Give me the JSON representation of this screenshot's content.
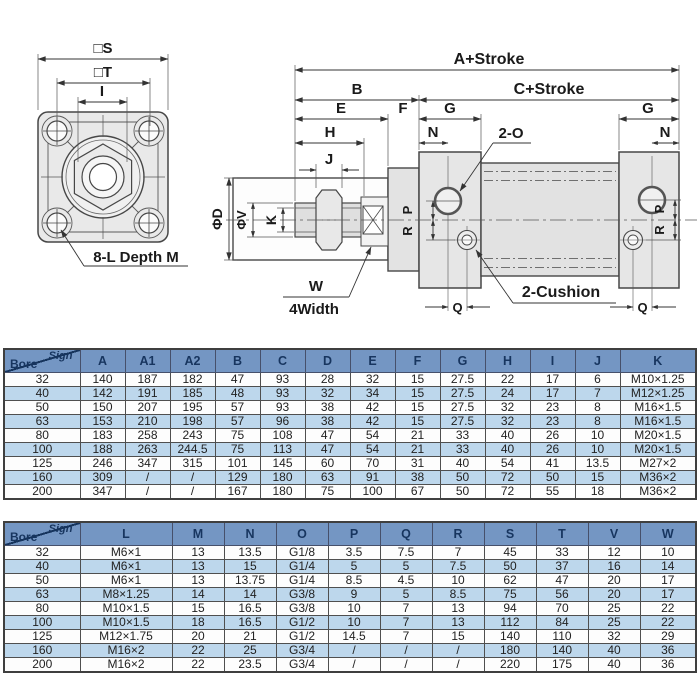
{
  "drawing": {
    "flange_view": {
      "dim_s": "□S",
      "dim_t": "□T",
      "dim_i": "I",
      "screw_note": "8-L Depth M"
    },
    "side_view": {
      "dim_a": "A+Stroke",
      "dim_b": "B",
      "dim_c": "C+Stroke",
      "dim_e": "E",
      "dim_f": "F",
      "dim_g_left": "G",
      "dim_g_right": "G",
      "dim_h": "H",
      "dim_n_left": "N",
      "dim_n_right": "N",
      "dim_j": "J",
      "dim_phi_d": "ΦD",
      "dim_phi_v": "ΦV",
      "dim_k": "K",
      "dim_p_left": "P",
      "dim_r_left": "R",
      "dim_p_right": "P",
      "dim_r_right": "R",
      "dim_q_left": "Q",
      "dim_q_right": "Q",
      "port_note": "2-O",
      "cushion_note": "2-Cushion",
      "dim_w": "W",
      "width_note": "4Width"
    }
  },
  "colors": {
    "table_header_bg": "#7496c3",
    "table_header_text": "#17355f",
    "table_row_alt": "#bdd7ec",
    "table_row": "#fdfdfd",
    "table_border": "#4f4f4f",
    "drawing_line": "#474747",
    "drawing_fill": "#e6e6e6"
  },
  "tables": [
    {
      "corner": {
        "sign": "Sign",
        "bore": "Bore"
      },
      "columns": [
        "A",
        "A1",
        "A2",
        "B",
        "C",
        "D",
        "E",
        "F",
        "G",
        "H",
        "I",
        "J",
        "K"
      ],
      "rows": [
        {
          "bore": "32",
          "cells": [
            "140",
            "187",
            "182",
            "47",
            "93",
            "28",
            "32",
            "15",
            "27.5",
            "22",
            "17",
            "6",
            "M10×1.25"
          ]
        },
        {
          "bore": "40",
          "cells": [
            "142",
            "191",
            "185",
            "48",
            "93",
            "32",
            "34",
            "15",
            "27.5",
            "24",
            "17",
            "7",
            "M12×1.25"
          ]
        },
        {
          "bore": "50",
          "cells": [
            "150",
            "207",
            "195",
            "57",
            "93",
            "38",
            "42",
            "15",
            "27.5",
            "32",
            "23",
            "8",
            "M16×1.5"
          ]
        },
        {
          "bore": "63",
          "cells": [
            "153",
            "210",
            "198",
            "57",
            "96",
            "38",
            "42",
            "15",
            "27.5",
            "32",
            "23",
            "8",
            "M16×1.5"
          ]
        },
        {
          "bore": "80",
          "cells": [
            "183",
            "258",
            "243",
            "75",
            "108",
            "47",
            "54",
            "21",
            "33",
            "40",
            "26",
            "10",
            "M20×1.5"
          ]
        },
        {
          "bore": "100",
          "cells": [
            "188",
            "263",
            "244.5",
            "75",
            "113",
            "47",
            "54",
            "21",
            "33",
            "40",
            "26",
            "10",
            "M20×1.5"
          ]
        },
        {
          "bore": "125",
          "cells": [
            "246",
            "347",
            "315",
            "101",
            "145",
            "60",
            "70",
            "31",
            "40",
            "54",
            "41",
            "13.5",
            "M27×2"
          ]
        },
        {
          "bore": "160",
          "cells": [
            "309",
            "/",
            "/",
            "129",
            "180",
            "63",
            "91",
            "38",
            "50",
            "72",
            "50",
            "15",
            "M36×2"
          ]
        },
        {
          "bore": "200",
          "cells": [
            "347",
            "/",
            "/",
            "167",
            "180",
            "75",
            "100",
            "67",
            "50",
            "72",
            "55",
            "18",
            "M36×2"
          ]
        }
      ]
    },
    {
      "corner": {
        "sign": "Sign",
        "bore": "Bore"
      },
      "columns": [
        "L",
        "M",
        "N",
        "O",
        "P",
        "Q",
        "R",
        "S",
        "T",
        "V",
        "W"
      ],
      "rows": [
        {
          "bore": "32",
          "cells": [
            "M6×1",
            "13",
            "13.5",
            "G1/8",
            "3.5",
            "7.5",
            "7",
            "45",
            "33",
            "12",
            "10"
          ]
        },
        {
          "bore": "40",
          "cells": [
            "M6×1",
            "13",
            "15",
            "G1/4",
            "5",
            "5",
            "7.5",
            "50",
            "37",
            "16",
            "14"
          ]
        },
        {
          "bore": "50",
          "cells": [
            "M6×1",
            "13",
            "13.75",
            "G1/4",
            "8.5",
            "4.5",
            "10",
            "62",
            "47",
            "20",
            "17"
          ]
        },
        {
          "bore": "63",
          "cells": [
            "M8×1.25",
            "14",
            "14",
            "G3/8",
            "9",
            "5",
            "8.5",
            "75",
            "56",
            "20",
            "17"
          ]
        },
        {
          "bore": "80",
          "cells": [
            "M10×1.5",
            "15",
            "16.5",
            "G3/8",
            "10",
            "7",
            "13",
            "94",
            "70",
            "25",
            "22"
          ]
        },
        {
          "bore": "100",
          "cells": [
            "M10×1.5",
            "18",
            "16.5",
            "G1/2",
            "10",
            "7",
            "13",
            "112",
            "84",
            "25",
            "22"
          ]
        },
        {
          "bore": "125",
          "cells": [
            "M12×1.75",
            "20",
            "21",
            "G1/2",
            "14.5",
            "7",
            "15",
            "140",
            "110",
            "32",
            "29"
          ]
        },
        {
          "bore": "160",
          "cells": [
            "M16×2",
            "22",
            "25",
            "G3/4",
            "/",
            "/",
            "/",
            "180",
            "140",
            "40",
            "36"
          ]
        },
        {
          "bore": "200",
          "cells": [
            "M16×2",
            "22",
            "23.5",
            "G3/4",
            "/",
            "/",
            "/",
            "220",
            "175",
            "40",
            "36"
          ]
        }
      ]
    }
  ]
}
